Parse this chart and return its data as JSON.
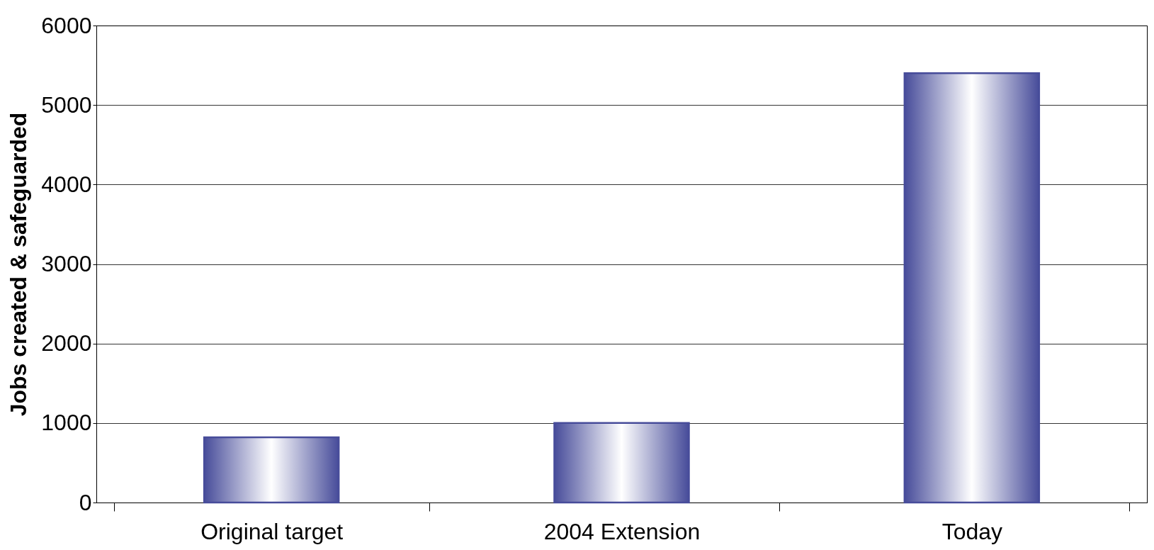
{
  "chart_data": {
    "type": "bar",
    "ylabel": "Jobs created & safeguarded",
    "categories": [
      "Original target",
      "2004 Extension",
      "Today"
    ],
    "values": [
      820,
      1000,
      5400
    ],
    "color": "#474c9a",
    "ylim": [
      0,
      6000
    ],
    "yticks": [
      0,
      1000,
      2000,
      3000,
      4000,
      5000,
      6000
    ],
    "grid": "y"
  }
}
